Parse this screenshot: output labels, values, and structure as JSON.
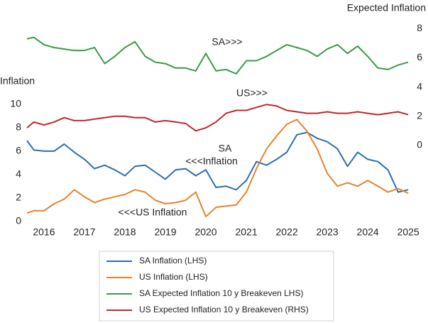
{
  "chart_data": {
    "type": "line",
    "y_label": "Inflation",
    "y2_label": "Expected Inflation",
    "x": [
      2015.58,
      2015.75,
      2016,
      2016.25,
      2016.5,
      2016.75,
      2017,
      2017.25,
      2017.5,
      2017.75,
      2018,
      2018.25,
      2018.5,
      2018.75,
      2019,
      2019.25,
      2019.5,
      2019.75,
      2020,
      2020.25,
      2020.5,
      2020.75,
      2021,
      2021.25,
      2021.5,
      2021.75,
      2022,
      2022.25,
      2022.5,
      2022.75,
      2023,
      2023.25,
      2023.5,
      2023.75,
      2024,
      2024.25,
      2024.5,
      2024.75,
      2025
    ],
    "xlim": [
      2015.58,
      2025.05
    ],
    "xticks": [
      2016,
      2017,
      2018,
      2019,
      2020,
      2021,
      2022,
      2023,
      2024,
      2025
    ],
    "ylim": [
      -0.5,
      17.1
    ],
    "yticks": [
      0,
      2,
      4,
      6,
      8,
      10
    ],
    "y2lim": [
      -5.6,
      8.5
    ],
    "y2ticks": [
      0,
      2,
      4,
      6,
      8
    ],
    "grid": false,
    "legend": "bottom",
    "series": [
      {
        "name": "SA Inflation (LHS)",
        "color": "#2f6db5",
        "values": [
          6.9,
          6.1,
          6.0,
          6.0,
          6.6,
          5.9,
          5.3,
          4.5,
          4.8,
          4.4,
          3.9,
          4.7,
          4.8,
          4.2,
          3.6,
          4.4,
          4.5,
          3.9,
          4.4,
          2.9,
          3.0,
          2.7,
          3.5,
          5.1,
          4.8,
          5.3,
          5.9,
          7.4,
          7.6,
          7.1,
          6.8,
          6.2,
          4.7,
          5.9,
          5.3,
          5.1,
          4.4,
          2.5,
          2.7
        ]
      },
      {
        "name": "US Inflation (LHS)",
        "color": "#e8832a",
        "values": [
          0.7,
          0.9,
          0.9,
          1.5,
          1.9,
          2.7,
          2.1,
          1.6,
          1.9,
          2.1,
          2.3,
          2.7,
          2.5,
          1.8,
          1.5,
          1.6,
          1.8,
          2.5,
          0.4,
          1.2,
          1.3,
          1.4,
          2.5,
          4.5,
          6.2,
          7.3,
          8.3,
          8.7,
          7.7,
          6.2,
          4.1,
          3.0,
          3.3,
          3.0,
          3.5,
          3.0,
          2.5,
          2.8,
          2.4
        ]
      },
      {
        "name": "SA Expected Inflation 10 y Breakeven LHS)",
        "color": "#3b9a47",
        "axis": "y2",
        "values": [
          7.3,
          7.4,
          6.9,
          6.7,
          6.6,
          6.5,
          6.5,
          6.7,
          5.6,
          6.1,
          6.7,
          7.1,
          6.1,
          5.7,
          5.6,
          5.3,
          5.3,
          5.1,
          6.3,
          5.1,
          5.2,
          4.9,
          5.8,
          5.8,
          6.1,
          6.5,
          6.9,
          6.7,
          6.5,
          6.1,
          6.6,
          6.9,
          6.3,
          6.8,
          6.1,
          5.3,
          5.2,
          5.5,
          5.7
        ]
      },
      {
        "name": "US Expected Inflation 10 y Breakeven (RHS)",
        "color": "#c0272d",
        "axis": "y2",
        "values": [
          1.2,
          1.6,
          1.4,
          1.6,
          1.9,
          1.7,
          1.7,
          1.8,
          1.9,
          2.0,
          2.0,
          1.9,
          1.9,
          1.6,
          1.7,
          1.6,
          1.5,
          1.0,
          1.2,
          1.6,
          2.2,
          2.4,
          2.4,
          2.6,
          2.8,
          2.7,
          2.4,
          2.3,
          2.2,
          2.2,
          2.3,
          2.2,
          2.2,
          2.3,
          2.2,
          2.1,
          2.2,
          2.3,
          2.1
        ]
      }
    ],
    "annotations": [
      "SA>>>",
      "US>>>",
      "SA",
      "<<<Inflation",
      "<<<US Inflation"
    ]
  }
}
